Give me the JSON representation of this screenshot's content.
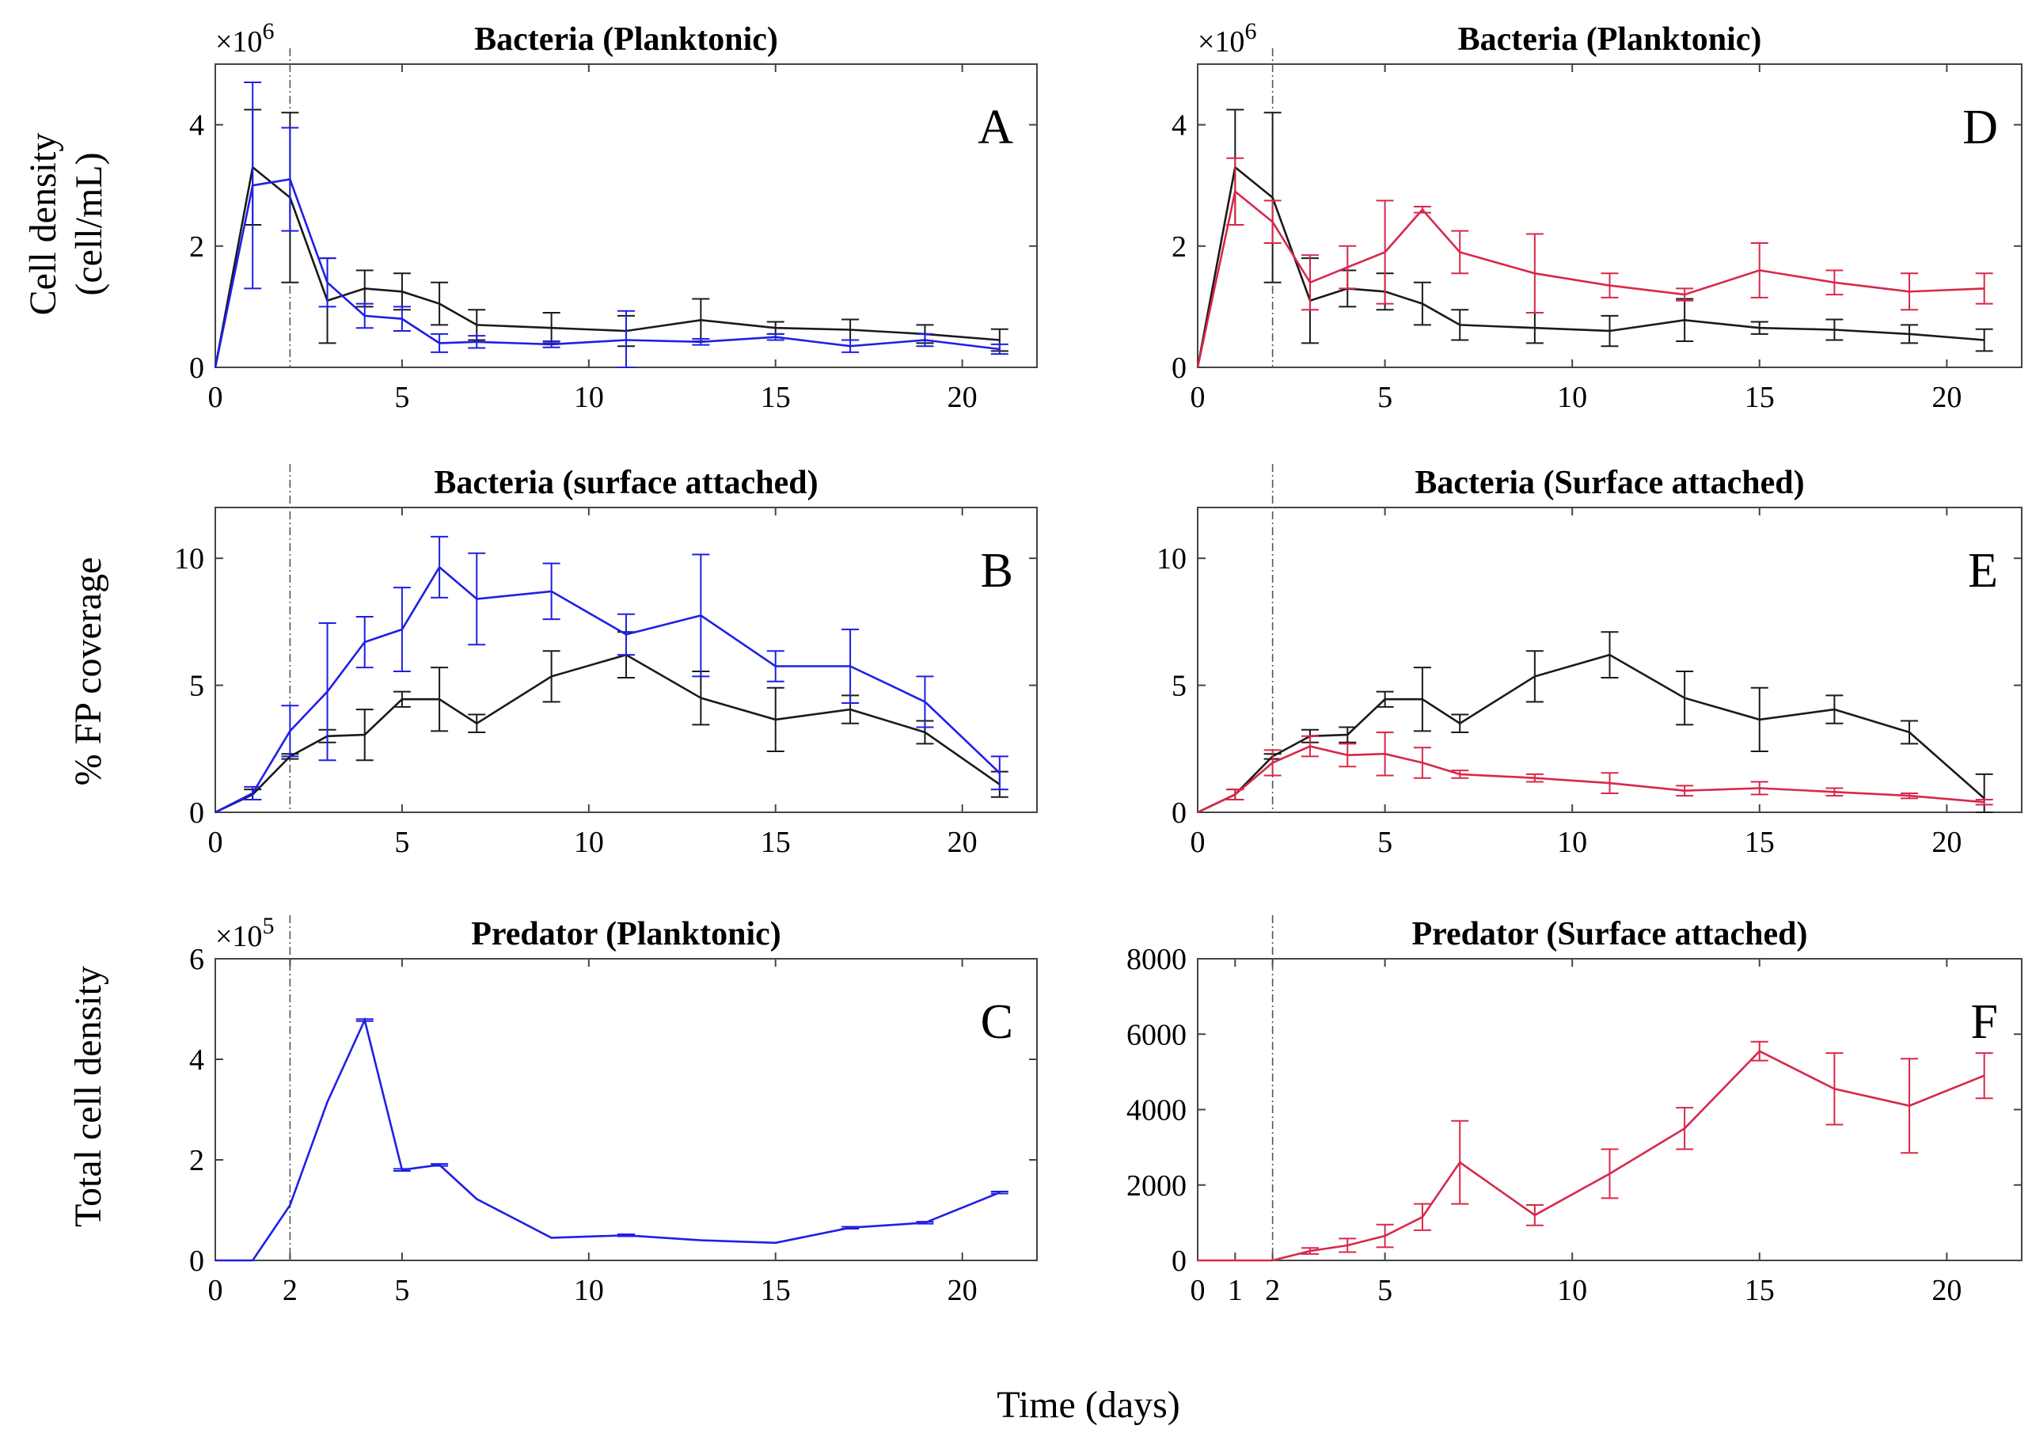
{
  "figure": {
    "xlabel": "Time (days)",
    "row_ylabels": [
      {
        "lines": [
          "Cell density",
          "(cell/mL)"
        ]
      },
      {
        "lines": [
          "% FP coverage"
        ]
      },
      {
        "lines": [
          "Total cell density"
        ]
      }
    ],
    "colors": {
      "black": "#1a1a1a",
      "blue": "#1f1fe6",
      "red": "#d8284a"
    }
  },
  "chart_data": [
    {
      "id": "A",
      "type": "line",
      "letter": "A",
      "title": "Bacteria (Planktonic)",
      "multiplier": "×10",
      "multiplier_exp": "6",
      "xlim": [
        0,
        22
      ],
      "ylim": [
        0,
        5
      ],
      "xticks": [
        "0",
        "5",
        "10",
        "15",
        "20"
      ],
      "xtick_values": [
        0,
        5,
        10,
        15,
        20
      ],
      "yticks": [
        "0",
        "2",
        "4"
      ],
      "ytick_values": [
        0,
        2,
        4
      ],
      "vline": 2,
      "series": [
        {
          "color": "black",
          "x": [
            0,
            1,
            2,
            3,
            4,
            5,
            6,
            7,
            9,
            11,
            13,
            15,
            17,
            19,
            21
          ],
          "y": [
            0,
            3.3,
            2.8,
            1.1,
            1.3,
            1.25,
            1.05,
            0.7,
            0.65,
            0.6,
            0.78,
            0.65,
            0.62,
            0.55,
            0.45
          ],
          "err": [
            0,
            0.95,
            1.4,
            0.7,
            0.3,
            0.3,
            0.35,
            0.25,
            0.25,
            0.25,
            0.35,
            0.1,
            0.17,
            0.15,
            0.18
          ]
        },
        {
          "color": "blue",
          "x": [
            0,
            1,
            2,
            3,
            4,
            5,
            6,
            7,
            9,
            11,
            13,
            15,
            17,
            19,
            21
          ],
          "y": [
            0,
            3.0,
            3.1,
            1.4,
            0.85,
            0.8,
            0.4,
            0.42,
            0.38,
            0.45,
            0.42,
            0.5,
            0.35,
            0.45,
            0.3
          ],
          "err": [
            0,
            1.7,
            0.85,
            0.4,
            0.2,
            0.2,
            0.15,
            0.1,
            0.05,
            0.48,
            0.05,
            0.05,
            0.1,
            0.1,
            0.08
          ]
        }
      ]
    },
    {
      "id": "B",
      "type": "line",
      "letter": "B",
      "title": "Bacteria (surface attached)",
      "multiplier": "",
      "multiplier_exp": "",
      "xlim": [
        0,
        22
      ],
      "ylim": [
        0,
        12
      ],
      "xticks": [
        "0",
        "5",
        "10",
        "15",
        "20"
      ],
      "xtick_values": [
        0,
        5,
        10,
        15,
        20
      ],
      "yticks": [
        "0",
        "5",
        "10"
      ],
      "ytick_values": [
        0,
        5,
        10
      ],
      "vline": 2,
      "series": [
        {
          "color": "black",
          "x": [
            0,
            1,
            2,
            3,
            4,
            5,
            6,
            7,
            9,
            11,
            13,
            15,
            17,
            19,
            21
          ],
          "y": [
            0,
            0.7,
            2.2,
            3.0,
            3.05,
            4.45,
            4.45,
            3.5,
            5.35,
            6.2,
            4.5,
            3.65,
            4.05,
            3.15,
            1.1
          ],
          "err": [
            0,
            0.2,
            0.1,
            0.25,
            1.0,
            0.3,
            1.25,
            0.35,
            1.0,
            0.9,
            1.05,
            1.25,
            0.55,
            0.45,
            0.5
          ]
        },
        {
          "color": "blue",
          "x": [
            0,
            1,
            2,
            3,
            4,
            5,
            6,
            7,
            9,
            11,
            13,
            15,
            17,
            19,
            21
          ],
          "y": [
            0,
            0.75,
            3.2,
            4.75,
            6.7,
            7.2,
            9.65,
            8.4,
            8.7,
            7.0,
            7.75,
            5.75,
            5.75,
            4.35,
            1.55
          ],
          "err": [
            0,
            0.25,
            1.0,
            2.7,
            1.0,
            1.65,
            1.2,
            1.8,
            1.1,
            0.8,
            2.4,
            0.6,
            1.45,
            1.0,
            0.65
          ]
        }
      ]
    },
    {
      "id": "C",
      "type": "line",
      "letter": "C",
      "title": "Predator (Planktonic)",
      "multiplier": "×10",
      "multiplier_exp": "5",
      "xlim": [
        0,
        22
      ],
      "ylim": [
        0,
        6
      ],
      "xticks": [
        "0",
        "2",
        "5",
        "10",
        "15",
        "20"
      ],
      "xtick_values": [
        0,
        2,
        5,
        10,
        15,
        20
      ],
      "yticks": [
        "0",
        "2",
        "4",
        "6"
      ],
      "ytick_values": [
        0,
        2,
        4,
        6
      ],
      "vline": 2,
      "series": [
        {
          "color": "blue",
          "x": [
            0,
            1,
            2,
            3,
            4,
            5,
            6,
            7,
            9,
            11,
            13,
            15,
            17,
            19,
            21
          ],
          "y": [
            0,
            0,
            1.1,
            3.15,
            4.78,
            1.8,
            1.9,
            1.22,
            0.45,
            0.5,
            0.4,
            0.35,
            0.65,
            0.75,
            1.35
          ],
          "err": [
            0,
            0,
            0,
            0,
            0.02,
            0.02,
            0.02,
            0,
            0,
            0.02,
            0,
            0,
            0.02,
            0.02,
            0.02
          ]
        }
      ]
    },
    {
      "id": "D",
      "type": "line",
      "letter": "D",
      "title": "Bacteria (Planktonic)",
      "multiplier": "×10",
      "multiplier_exp": "6",
      "xlim": [
        0,
        22
      ],
      "ylim": [
        0,
        5
      ],
      "xticks": [
        "0",
        "5",
        "10",
        "15",
        "20"
      ],
      "xtick_values": [
        0,
        5,
        10,
        15,
        20
      ],
      "yticks": [
        "0",
        "2",
        "4"
      ],
      "ytick_values": [
        0,
        2,
        4
      ],
      "vline": 2,
      "series": [
        {
          "color": "black",
          "x": [
            0,
            1,
            2,
            3,
            4,
            5,
            6,
            7,
            9,
            11,
            13,
            15,
            17,
            19,
            21
          ],
          "y": [
            0,
            3.3,
            2.8,
            1.1,
            1.3,
            1.25,
            1.05,
            0.7,
            0.65,
            0.6,
            0.78,
            0.65,
            0.62,
            0.55,
            0.45
          ],
          "err": [
            0,
            0.95,
            1.4,
            0.7,
            0.3,
            0.3,
            0.35,
            0.25,
            0.25,
            0.25,
            0.35,
            0.1,
            0.17,
            0.15,
            0.18
          ]
        },
        {
          "color": "red",
          "x": [
            0,
            1,
            2,
            3,
            4,
            5,
            6,
            7,
            9,
            11,
            13,
            15,
            17,
            19,
            21
          ],
          "y": [
            0,
            2.9,
            2.4,
            1.4,
            1.65,
            1.9,
            2.6,
            1.9,
            1.55,
            1.35,
            1.2,
            1.6,
            1.4,
            1.25,
            1.3
          ],
          "err": [
            0,
            0.55,
            0.35,
            0.45,
            0.35,
            0.85,
            0.05,
            0.35,
            0.65,
            0.2,
            0.1,
            0.45,
            0.2,
            0.3,
            0.25
          ]
        }
      ]
    },
    {
      "id": "E",
      "type": "line",
      "letter": "E",
      "title": "Bacteria (Surface attached)",
      "multiplier": "",
      "multiplier_exp": "",
      "xlim": [
        0,
        22
      ],
      "ylim": [
        0,
        12
      ],
      "xticks": [
        "0",
        "5",
        "10",
        "15",
        "20"
      ],
      "xtick_values": [
        0,
        5,
        10,
        15,
        20
      ],
      "yticks": [
        "0",
        "5",
        "10"
      ],
      "ytick_values": [
        0,
        5,
        10
      ],
      "vline": 2,
      "series": [
        {
          "color": "black",
          "x": [
            0,
            1,
            2,
            3,
            4,
            5,
            6,
            7,
            9,
            11,
            13,
            15,
            17,
            19,
            21
          ],
          "y": [
            0,
            0.7,
            2.2,
            3.0,
            3.05,
            4.45,
            4.45,
            3.5,
            5.35,
            6.2,
            4.5,
            3.65,
            4.05,
            3.15,
            0.55
          ],
          "err": [
            0,
            0.2,
            0.1,
            0.25,
            0.3,
            0.3,
            1.25,
            0.35,
            1.0,
            0.9,
            1.05,
            1.25,
            0.55,
            0.45,
            0.95
          ]
        },
        {
          "color": "red",
          "x": [
            0,
            1,
            2,
            3,
            4,
            5,
            6,
            7,
            9,
            11,
            13,
            15,
            17,
            19,
            21
          ],
          "y": [
            0,
            0.7,
            1.95,
            2.6,
            2.25,
            2.3,
            1.95,
            1.5,
            1.35,
            1.15,
            0.85,
            0.95,
            0.8,
            0.65,
            0.4
          ],
          "err": [
            0,
            0.2,
            0.5,
            0.4,
            0.45,
            0.85,
            0.6,
            0.15,
            0.15,
            0.4,
            0.2,
            0.25,
            0.15,
            0.1,
            0.1
          ]
        }
      ]
    },
    {
      "id": "F",
      "type": "line",
      "letter": "F",
      "title": "Predator (Surface attached)",
      "multiplier": "",
      "multiplier_exp": "",
      "xlim": [
        0,
        22
      ],
      "ylim": [
        0,
        8000
      ],
      "xticks": [
        "0",
        "1",
        "2",
        "5",
        "10",
        "15",
        "20"
      ],
      "xtick_values": [
        0,
        1,
        2,
        5,
        10,
        15,
        20
      ],
      "yticks": [
        "0",
        "2000",
        "4000",
        "6000",
        "8000"
      ],
      "ytick_values": [
        0,
        2000,
        4000,
        6000,
        8000
      ],
      "vline": 2,
      "series": [
        {
          "color": "red",
          "x": [
            0,
            1,
            2,
            3,
            4,
            5,
            6,
            7,
            9,
            11,
            13,
            15,
            17,
            19,
            21
          ],
          "y": [
            0,
            0,
            0,
            250,
            400,
            650,
            1150,
            2600,
            1200,
            2300,
            3500,
            5550,
            4550,
            4100,
            4900
          ],
          "err": [
            0,
            0,
            0,
            80,
            180,
            300,
            350,
            1100,
            270,
            650,
            550,
            250,
            950,
            1250,
            600
          ]
        }
      ]
    }
  ]
}
